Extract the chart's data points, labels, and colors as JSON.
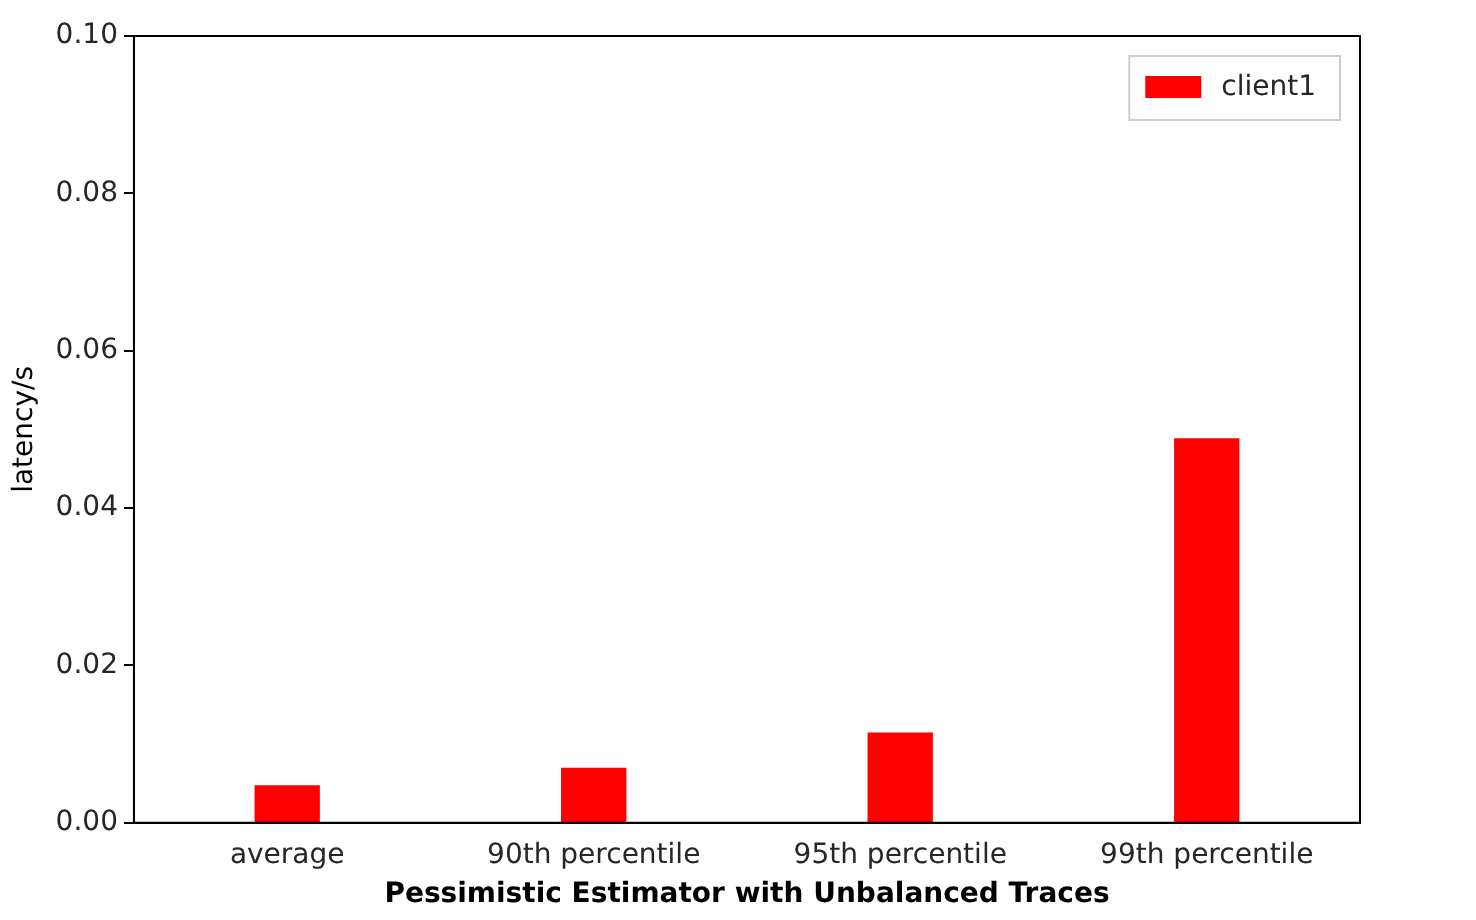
{
  "chart_data": {
    "type": "bar",
    "xlabel": "Pessimistic Estimator with Unbalanced Traces",
    "ylabel": "latency/s",
    "categories": [
      "average",
      "90th percentile",
      "95th percentile",
      "99th percentile"
    ],
    "series": [
      {
        "name": "client1",
        "color": "#ff0000",
        "values": [
          0.0047,
          0.0069,
          0.0114,
          0.0488
        ]
      }
    ],
    "ylim": [
      0,
      0.1
    ],
    "yticks": [
      {
        "value": 0,
        "label": "0.00"
      },
      0.02,
      0.04,
      0.06,
      0.08,
      {
        "value": 0.1,
        "label": "0.10"
      }
    ],
    "grid": false,
    "legend": "top right"
  }
}
